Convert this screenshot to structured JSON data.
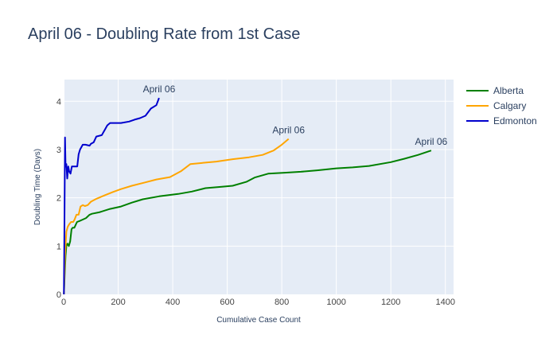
{
  "chart_data": {
    "type": "line",
    "title": "April 06 - Doubling Rate from 1st Case",
    "xlabel": "Cumulative Case Count",
    "ylabel": "Doubling Time (Days)",
    "xlim": [
      0,
      1430
    ],
    "ylim": [
      0,
      4.45
    ],
    "xticks": [
      0,
      200,
      400,
      600,
      800,
      1000,
      1200,
      1400
    ],
    "yticks": [
      0,
      1,
      2,
      3,
      4
    ],
    "grid": true,
    "legend_position": "top-right",
    "series": [
      {
        "name": "Alberta",
        "color": "#008000",
        "x": [
          1,
          4,
          7,
          10,
          14,
          19,
          24,
          29,
          33,
          39,
          49,
          58,
          70,
          82,
          95,
          104,
          130,
          170,
          210,
          250,
          290,
          350,
          420,
          470,
          520,
          580,
          620,
          670,
          700,
          750,
          810,
          870,
          930,
          1000,
          1060,
          1120,
          1200,
          1250,
          1300,
          1348
        ],
        "y": [
          0,
          0.45,
          0.8,
          1.0,
          1.05,
          1.0,
          1.1,
          1.35,
          1.38,
          1.38,
          1.5,
          1.52,
          1.55,
          1.58,
          1.65,
          1.67,
          1.7,
          1.77,
          1.82,
          1.9,
          1.97,
          2.03,
          2.08,
          2.13,
          2.2,
          2.23,
          2.25,
          2.33,
          2.42,
          2.5,
          2.52,
          2.54,
          2.57,
          2.61,
          2.63,
          2.66,
          2.74,
          2.81,
          2.89,
          2.98
        ]
      },
      {
        "name": "Calgary",
        "color": "#FFA500",
        "x": [
          1,
          5,
          10,
          15,
          20,
          27,
          35,
          40,
          47,
          55,
          62,
          70,
          78,
          88,
          100,
          120,
          150,
          180,
          210,
          250,
          300,
          340,
          390,
          430,
          465,
          520,
          560,
          620,
          680,
          730,
          770,
          800,
          825
        ],
        "y": [
          0,
          0.8,
          1.3,
          1.4,
          1.45,
          1.5,
          1.5,
          1.55,
          1.65,
          1.65,
          1.82,
          1.85,
          1.83,
          1.85,
          1.92,
          1.98,
          2.05,
          2.12,
          2.18,
          2.25,
          2.32,
          2.38,
          2.43,
          2.55,
          2.7,
          2.73,
          2.75,
          2.8,
          2.84,
          2.89,
          2.98,
          3.1,
          3.22
        ]
      },
      {
        "name": "Edmonton",
        "color": "#0000CD",
        "x": [
          1,
          3,
          5,
          7,
          10,
          13,
          17,
          20,
          25,
          30,
          40,
          50,
          55,
          60,
          70,
          80,
          95,
          100,
          110,
          120,
          140,
          145,
          150,
          160,
          170,
          190,
          210,
          240,
          260,
          280,
          300,
          320,
          340,
          350
        ],
        "y": [
          0,
          1.5,
          3.25,
          2.65,
          2.7,
          2.4,
          2.65,
          2.55,
          2.5,
          2.65,
          2.65,
          2.65,
          2.9,
          3.0,
          3.1,
          3.1,
          3.08,
          3.12,
          3.15,
          3.27,
          3.3,
          3.35,
          3.4,
          3.5,
          3.55,
          3.55,
          3.55,
          3.58,
          3.62,
          3.65,
          3.7,
          3.85,
          3.92,
          4.07
        ]
      }
    ],
    "annotations": [
      {
        "text": "April 06",
        "x": 350,
        "y": 4.07
      },
      {
        "text": "April 06",
        "x": 825,
        "y": 3.22
      },
      {
        "text": "April 06",
        "x": 1348,
        "y": 2.98
      }
    ]
  }
}
